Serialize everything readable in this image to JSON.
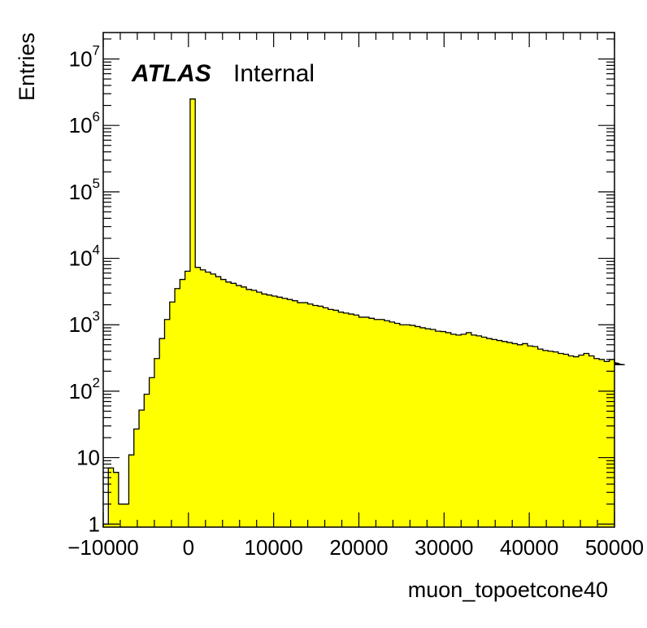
{
  "chart_data": {
    "type": "histogram",
    "title": "",
    "xlabel": "muon_topoetcone40",
    "ylabel": "Entries",
    "xlim": [
      -10000,
      50000
    ],
    "ylim": [
      0.9,
      25000000
    ],
    "log_y": true,
    "grid": false,
    "fill_color": "#ffff00",
    "line_color": "#000000",
    "annotations": {
      "atlas": "ATLAS",
      "status": "Internal"
    },
    "x_tick_labels": [
      "−10000",
      "0",
      "10000",
      "20000",
      "30000",
      "40000",
      "50000"
    ],
    "x_tick_values": [
      -10000,
      0,
      10000,
      20000,
      30000,
      40000,
      50000
    ],
    "y_tick_labels": [
      {
        "value": 1,
        "base": "1",
        "exp": ""
      },
      {
        "value": 10,
        "base": "10",
        "exp": ""
      },
      {
        "value": 100,
        "base": "10",
        "exp": "2"
      },
      {
        "value": 1000,
        "base": "10",
        "exp": "3"
      },
      {
        "value": 10000,
        "base": "10",
        "exp": "4"
      },
      {
        "value": 100000,
        "base": "10",
        "exp": "5"
      },
      {
        "value": 1000000,
        "base": "10",
        "exp": "6"
      },
      {
        "value": 10000000,
        "base": "10",
        "exp": "7"
      }
    ],
    "bin_width": 600,
    "bin_start": -10000,
    "values": [
      1,
      7,
      6,
      2,
      2,
      11,
      27,
      52,
      90,
      160,
      310,
      620,
      1200,
      2200,
      3500,
      4800,
      6400,
      2500000,
      7300,
      6700,
      6200,
      5800,
      5300,
      4800,
      4400,
      4200,
      3900,
      3700,
      3400,
      3300,
      3100,
      2900,
      2800,
      2700,
      2600,
      2500,
      2400,
      2300,
      2150,
      2150,
      2050,
      1950,
      1900,
      1800,
      1700,
      1650,
      1550,
      1500,
      1450,
      1400,
      1300,
      1300,
      1250,
      1200,
      1200,
      1150,
      1100,
      1050,
      1000,
      1000,
      980,
      940,
      900,
      870,
      850,
      800,
      790,
      760,
      720,
      700,
      720,
      760,
      700,
      680,
      650,
      620,
      600,
      580,
      560,
      540,
      520,
      500,
      520,
      480,
      470,
      430,
      410,
      400,
      390,
      370,
      360,
      340,
      330,
      350,
      370,
      340,
      310,
      300,
      280,
      300,
      270,
      260,
      250
    ]
  }
}
